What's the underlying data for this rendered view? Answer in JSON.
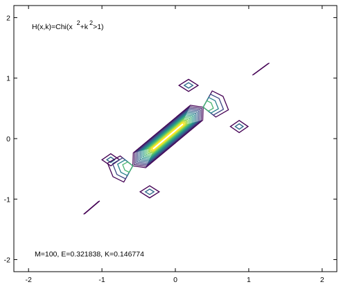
{
  "chart_data": {
    "type": "contour",
    "title": "",
    "xlabel": "",
    "ylabel": "",
    "xlim": [
      -2.2,
      2.2
    ],
    "ylim": [
      -2.2,
      2.2
    ],
    "xticks": [
      -2,
      -1,
      0,
      1,
      2
    ],
    "yticks": [
      -2,
      -1,
      0,
      1,
      2
    ],
    "grid": false,
    "annotations": {
      "formula_base": "H(x,k)=Chi(x",
      "formula_exp1": "2",
      "formula_mid": "+k",
      "formula_exp2": "2",
      "formula_end": ">1)",
      "stats": "M=100, E=0.321838, K=0.146774"
    },
    "colormap": [
      "#440154",
      "#3b528b",
      "#21918c",
      "#5ec962",
      "#fde725"
    ],
    "regions": [
      {
        "name": "central-ridge",
        "x": [
          -0.58,
          0.38
        ],
        "y": [
          -0.45,
          0.52
        ],
        "levels": 14
      },
      {
        "name": "diamond-upper-mid",
        "cx": 0.18,
        "cy": 0.88,
        "rx": 0.13,
        "ry": 0.1,
        "levels": 2
      },
      {
        "name": "diamond-right",
        "cx": 0.87,
        "cy": 0.2,
        "rx": 0.12,
        "ry": 0.1,
        "levels": 2
      },
      {
        "name": "diamond-left",
        "cx": -0.88,
        "cy": -0.35,
        "rx": 0.12,
        "ry": 0.1,
        "levels": 2
      },
      {
        "name": "diamond-lower",
        "cx": -0.35,
        "cy": -0.88,
        "rx": 0.13,
        "ry": 0.1,
        "levels": 2
      },
      {
        "name": "streak-upper-right",
        "x": [
          1.05,
          1.28
        ],
        "y": [
          1.05,
          1.25
        ]
      },
      {
        "name": "streak-lower-left",
        "x": [
          -1.25,
          -1.03
        ],
        "y": [
          -1.25,
          -1.03
        ]
      }
    ]
  }
}
